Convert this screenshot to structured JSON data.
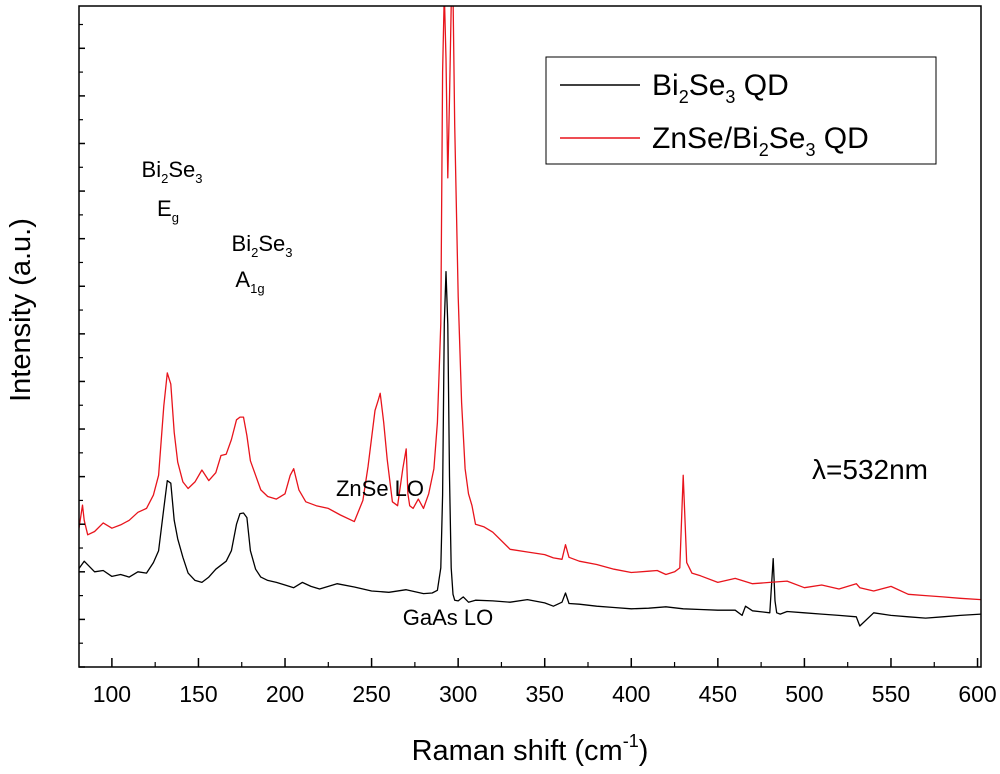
{
  "chart_data": {
    "type": "line",
    "xlabel": "Raman shift (cm",
    "xlabel_sup": "-1",
    "xlabel_close": ")",
    "ylabel": "Intensity (a.u.)",
    "xlim": [
      81,
      602
    ],
    "ylim": [
      0,
      1000
    ],
    "x_ticks": [
      "100",
      "150",
      "200",
      "250",
      "300",
      "350",
      "400",
      "450",
      "500",
      "550",
      "600"
    ],
    "legend_position": "top-right",
    "series": [
      {
        "name_parts": [
          "Bi",
          "2",
          "Se",
          "3",
          " QD"
        ],
        "color": "#000000",
        "x": [
          81,
          84,
          90,
          95,
          100,
          105,
          110,
          115,
          120,
          124,
          127,
          130,
          132,
          134,
          136,
          138,
          141,
          144,
          148,
          152,
          156,
          160,
          163,
          166,
          169,
          172,
          174,
          176,
          178,
          180,
          183,
          186,
          190,
          195,
          200,
          205,
          210,
          215,
          220,
          230,
          240,
          250,
          260,
          270,
          280,
          285,
          288,
          290,
          291,
          292,
          293,
          294,
          295,
          296,
          297,
          298,
          300,
          303,
          306,
          310,
          320,
          330,
          340,
          350,
          355,
          360,
          362,
          364,
          370,
          380,
          390,
          400,
          410,
          420,
          430,
          440,
          450,
          460,
          464,
          466,
          470,
          480,
          482,
          483,
          484,
          486,
          490,
          500,
          510,
          520,
          530,
          532,
          540,
          550,
          560,
          570,
          580,
          590,
          602
        ],
        "y": [
          149,
          160,
          144,
          146,
          137,
          140,
          136,
          144,
          142,
          158,
          176,
          240,
          282,
          278,
          222,
          194,
          166,
          142,
          131,
          128,
          136,
          148,
          154,
          160,
          176,
          216,
          232,
          233,
          226,
          176,
          148,
          136,
          131,
          128,
          124,
          120,
          128,
          122,
          118,
          126,
          121,
          115,
          113,
          117,
          111,
          112,
          116,
          150,
          260,
          520,
          598,
          518,
          288,
          150,
          110,
          101,
          100,
          106,
          98,
          101,
          100,
          98,
          102,
          97,
          92,
          98,
          112,
          96,
          95,
          92,
          90,
          88,
          89,
          91,
          88,
          87,
          86,
          86,
          78,
          92,
          85,
          82,
          164,
          100,
          82,
          80,
          84,
          82,
          80,
          78,
          76,
          62,
          82,
          78,
          76,
          74,
          76,
          78,
          80
        ]
      },
      {
        "name_parts": [
          "ZnSe/Bi",
          "2",
          "Se",
          "3",
          " QD"
        ],
        "color": "#e8141c",
        "x": [
          81,
          83,
          84,
          86,
          90,
          95,
          100,
          105,
          110,
          115,
          120,
          124,
          127,
          130,
          132,
          134,
          136,
          138,
          141,
          144,
          148,
          152,
          156,
          160,
          163,
          166,
          169,
          172,
          174,
          176,
          178,
          180,
          183,
          186,
          190,
          195,
          200,
          203,
          205,
          208,
          212,
          218,
          225,
          232,
          240,
          245,
          248,
          252,
          254,
          255,
          257,
          259,
          262,
          265,
          268,
          270,
          271,
          272,
          274,
          277,
          280,
          283,
          286,
          288,
          290,
          291,
          292,
          293,
          294,
          295,
          296,
          297,
          298,
          300,
          302,
          304,
          306,
          308,
          310,
          315,
          320,
          330,
          340,
          350,
          355,
          360,
          362,
          364,
          370,
          380,
          390,
          400,
          410,
          415,
          420,
          425,
          428,
          430,
          432,
          435,
          440,
          450,
          460,
          470,
          480,
          490,
          500,
          510,
          520,
          530,
          532,
          540,
          550,
          560,
          570,
          580,
          590,
          602
        ],
        "y": [
          210,
          245,
          222,
          200,
          205,
          218,
          210,
          215,
          222,
          234,
          240,
          260,
          290,
          395,
          445,
          428,
          355,
          310,
          280,
          270,
          280,
          298,
          282,
          294,
          320,
          322,
          344,
          374,
          378,
          378,
          350,
          312,
          290,
          268,
          258,
          254,
          262,
          290,
          300,
          268,
          250,
          244,
          240,
          230,
          220,
          252,
          304,
          388,
          405,
          414,
          370,
          314,
          250,
          244,
          300,
          330,
          262,
          244,
          240,
          254,
          240,
          262,
          300,
          370,
          520,
          900,
          1020,
          920,
          740,
          860,
          1000,
          1020,
          820,
          560,
          400,
          300,
          262,
          244,
          216,
          212,
          204,
          178,
          174,
          170,
          165,
          163,
          185,
          166,
          160,
          155,
          148,
          143,
          145,
          146,
          140,
          144,
          150,
          290,
          158,
          142,
          138,
          128,
          134,
          126,
          128,
          130,
          120,
          124,
          118,
          126,
          120,
          115,
          122,
          110,
          108,
          106,
          104,
          102
        ]
      }
    ],
    "annotations": {
      "eg_top": [
        "Bi",
        "2",
        "Se",
        "3"
      ],
      "eg_bottom": [
        "E",
        "g"
      ],
      "a1g_top": [
        "Bi",
        "2",
        "Se",
        "3"
      ],
      "a1g_bottom": [
        "A",
        "1g"
      ],
      "znse_lo": "ZnSe LO",
      "gaas_lo": "GaAs LO",
      "wavelength": "λ=532nm"
    }
  }
}
